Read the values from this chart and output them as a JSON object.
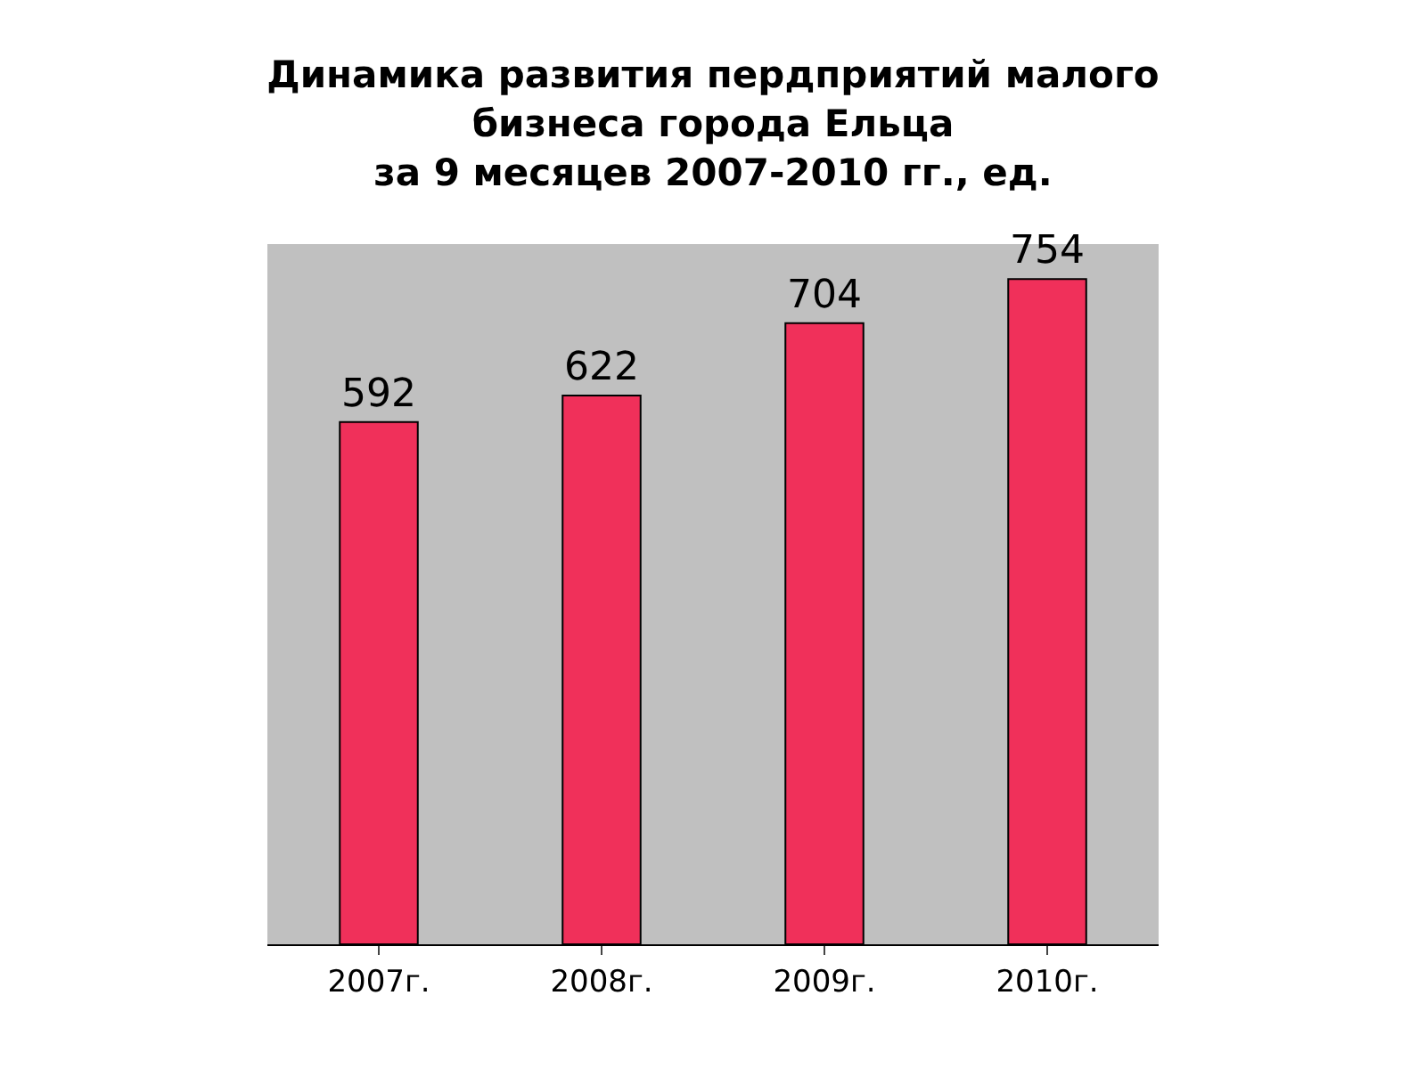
{
  "chart_data": {
    "type": "bar",
    "title": "Динамика развития пердприятий малого\nбизнеса города Ельца\nза 9 месяцев 2007-2010 гг., ед.",
    "categories": [
      "2007г.",
      "2008г.",
      "2009г.",
      "2010г."
    ],
    "values": [
      592,
      622,
      704,
      754
    ],
    "color": "#f0305a",
    "data_labels": true
  }
}
